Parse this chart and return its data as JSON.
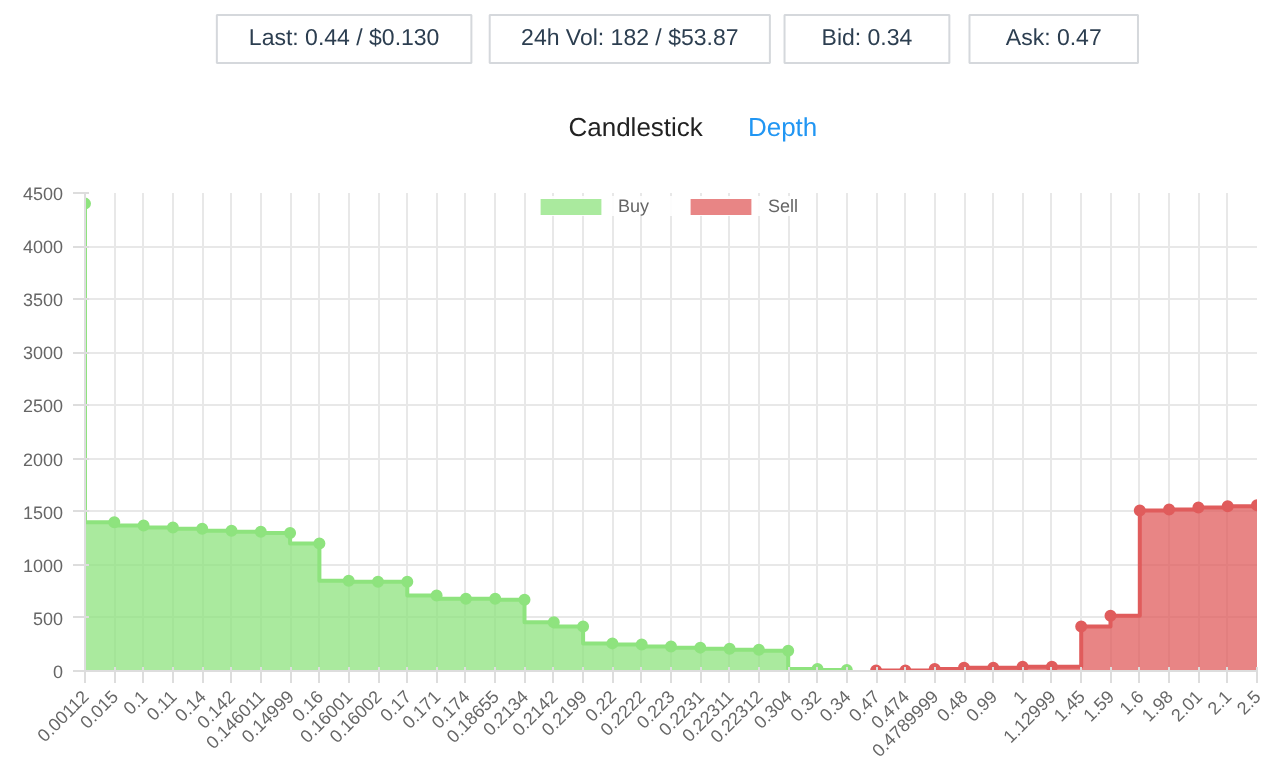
{
  "chart_data": {
    "type": "step",
    "annotations": [
      "Last: 0.44 / $0.130",
      "24h Vol: 182 / $53.87",
      "Bid: 0.34",
      "Ask: 0.47",
      "Candlestick",
      "Depth"
    ],
    "categories": [
      "0.00112",
      "0.015",
      "0.1",
      "0.11",
      "0.14",
      "0.142",
      "0.146011",
      "0.14999",
      "0.16",
      "0.16001",
      "0.16002",
      "0.17",
      "0.171",
      "0.174",
      "0.18655",
      "0.2134",
      "0.2142",
      "0.2199",
      "0.22",
      "0.2222",
      "0.223",
      "0.2231",
      "0.22311",
      "0.22312",
      "0.304",
      "0.32",
      "0.34",
      "0.47",
      "0.474",
      "0.4789999",
      "0.48",
      "0.99",
      "1",
      "1.12999",
      "1.45",
      "1.59",
      "1.6",
      "1.98",
      "2.01",
      "2.1",
      "2.5"
    ],
    "series": [
      {
        "name": "Buy",
        "color": "#8ee37e",
        "values": [
          4400,
          1400,
          1370,
          1350,
          1340,
          1320,
          1310,
          1300,
          1200,
          850,
          840,
          840,
          710,
          680,
          680,
          670,
          460,
          420,
          260,
          250,
          230,
          220,
          210,
          200,
          190,
          20,
          10,
          null,
          null,
          null,
          null,
          null,
          null,
          null,
          null,
          null,
          null,
          null,
          null,
          null,
          null
        ]
      },
      {
        "name": "Sell",
        "color": "#e05c5c",
        "values": [
          null,
          null,
          null,
          null,
          null,
          null,
          null,
          null,
          null,
          null,
          null,
          null,
          null,
          null,
          null,
          null,
          null,
          null,
          null,
          null,
          null,
          null,
          null,
          null,
          null,
          null,
          null,
          5,
          5,
          20,
          30,
          30,
          40,
          40,
          420,
          520,
          1510,
          1520,
          1540,
          1550,
          1560
        ]
      }
    ],
    "ylim": [
      0,
      4500
    ],
    "yticks": [
      0,
      500,
      1000,
      1500,
      2000,
      2500,
      3000,
      3500,
      4000,
      4500
    ],
    "grid": true,
    "legend": "top",
    "marker": "circle"
  }
}
